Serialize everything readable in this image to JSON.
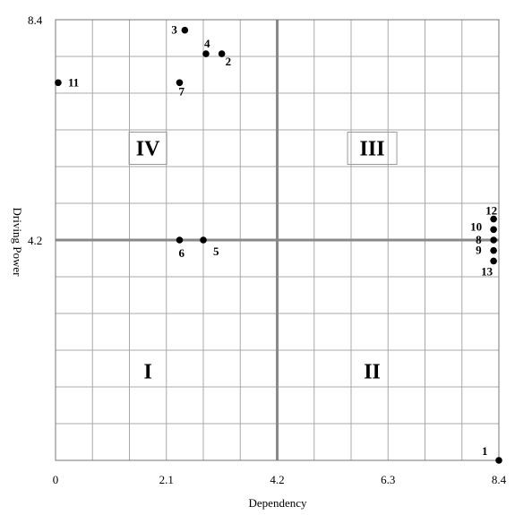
{
  "chart_data": {
    "type": "scatter",
    "title": "",
    "xlabel": "Dependency",
    "ylabel": "Driving Power",
    "xlim": [
      0,
      8.4
    ],
    "ylim": [
      0,
      8.4
    ],
    "x_ticks": [
      "0",
      "2.1",
      "4.2",
      "6.3",
      "8.4"
    ],
    "y_ticks": [
      "4.2",
      "8.4"
    ],
    "grid": true,
    "midlines": [
      4.2,
      4.2
    ],
    "quadrants": [
      {
        "label": "I",
        "x": 1.75,
        "y": 1.7,
        "boxed": false
      },
      {
        "label": "II",
        "x": 6.0,
        "y": 1.7,
        "boxed": false
      },
      {
        "label": "III",
        "x": 6.0,
        "y": 5.95,
        "boxed": true
      },
      {
        "label": "IV",
        "x": 1.75,
        "y": 5.95,
        "boxed": true
      }
    ],
    "points": [
      {
        "label": "1",
        "x": 8.4,
        "y": 0.0
      },
      {
        "label": "2",
        "x": 3.15,
        "y": 7.75
      },
      {
        "label": "3",
        "x": 2.45,
        "y": 8.2
      },
      {
        "label": "4",
        "x": 2.85,
        "y": 7.75
      },
      {
        "label": "5",
        "x": 2.8,
        "y": 4.2
      },
      {
        "label": "6",
        "x": 2.35,
        "y": 4.2
      },
      {
        "label": "7",
        "x": 2.35,
        "y": 7.2
      },
      {
        "label": "8",
        "x": 8.3,
        "y": 4.2
      },
      {
        "label": "9",
        "x": 8.3,
        "y": 4.0
      },
      {
        "label": "10",
        "x": 8.3,
        "y": 4.4
      },
      {
        "label": "11",
        "x": 0.05,
        "y": 7.2
      },
      {
        "label": "12",
        "x": 8.3,
        "y": 4.6
      },
      {
        "label": "13",
        "x": 8.3,
        "y": 3.8
      }
    ]
  }
}
